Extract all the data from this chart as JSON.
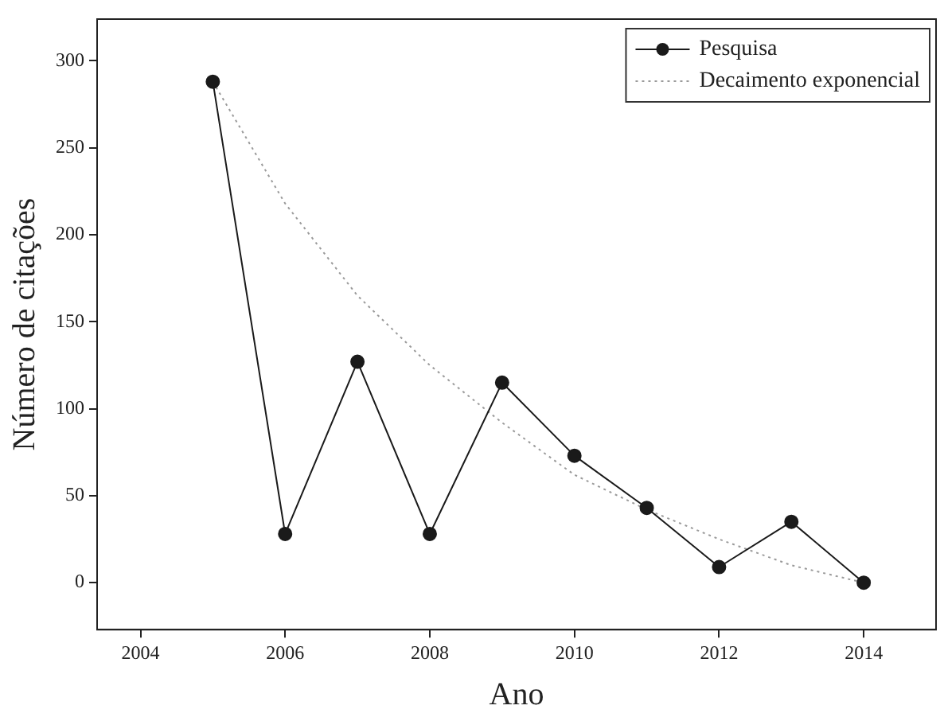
{
  "chart_data": {
    "type": "line",
    "xlabel": "Ano",
    "ylabel": "Número de citações",
    "x": [
      2005,
      2006,
      2007,
      2008,
      2009,
      2010,
      2011,
      2012,
      2013,
      2014
    ],
    "series": [
      {
        "name": "Pesquisa",
        "color": "#1a1a1a",
        "marker": "circle",
        "line_style": "solid",
        "values": [
          288,
          28,
          127,
          28,
          115,
          73,
          43,
          9,
          35,
          0
        ]
      },
      {
        "name": "Decaimento exponencial",
        "color": "#9a9a9a",
        "marker": "none",
        "line_style": "dotted",
        "values": [
          288,
          218,
          165,
          125,
          92,
          62,
          42,
          25,
          10,
          0
        ]
      }
    ],
    "xlim": [
      2003.4,
      2015
    ],
    "xticks": [
      2004,
      2006,
      2008,
      2010,
      2012,
      2014
    ],
    "ylim": [
      -27,
      324
    ],
    "yticks": [
      0,
      50,
      100,
      150,
      200,
      250,
      300
    ],
    "grid": false,
    "legend": "top right"
  }
}
